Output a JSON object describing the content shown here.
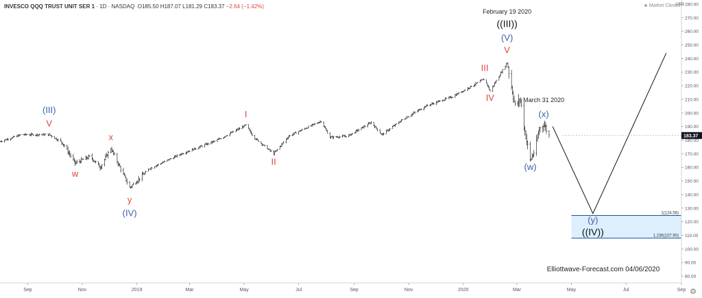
{
  "header": {
    "symbol": "INVESCO QQQ TRUST UNIT SER 1",
    "interval": "1D",
    "exchange": "NASDAQ",
    "open": "O185.50",
    "high": "H187.07",
    "low": "L181.29",
    "close": "C183.37",
    "change": "−2.64 (−1.42%)",
    "market_status": "Market Closed",
    "currency": "USD"
  },
  "colors": {
    "axis_text": "#555555",
    "price_tag": "#131722",
    "wave_red": "#e0443a",
    "wave_blue": "#3a5ca8",
    "box_fill": "#ddeefc",
    "box_stroke": "#1e4f9e",
    "bars": "#222222",
    "projection": "#111111"
  },
  "chart_data": {
    "type": "ohlc",
    "x_tick_labels": [
      "Sep",
      "Nov",
      "2019",
      "Mar",
      "May",
      "Jul",
      "Sep",
      "Nov",
      "2020",
      "Mar",
      "May",
      "Jul",
      "Sep"
    ],
    "x_tick_dates": [
      "2018-09-01",
      "2018-11-01",
      "2019-01-01",
      "2019-03-01",
      "2019-05-01",
      "2019-07-01",
      "2019-09-01",
      "2019-11-01",
      "2020-01-01",
      "2020-03-01",
      "2020-05-01",
      "2020-07-01",
      "2020-09-01"
    ],
    "x_range": [
      "2018-08-01",
      "2020-09-01"
    ],
    "y_ticks": [
      80,
      90,
      100,
      110,
      120,
      130,
      140,
      150,
      160,
      170,
      180,
      190,
      200,
      210,
      220,
      230,
      240,
      250,
      260,
      270,
      280
    ],
    "y_tick_labels": [
      "80.00",
      "90.00",
      "100.00",
      "110.00",
      "120.00",
      "130.00",
      "140.00",
      "150.00",
      "160.00",
      "170.00",
      "180.00",
      "190.00",
      "200.00",
      "210.00",
      "220.00",
      "230.00",
      "240.00",
      "250.00",
      "260.00",
      "270.00",
      "280.00"
    ],
    "y_range": [
      75,
      283
    ],
    "last_price": 183.37,
    "last_price_label": "183.37",
    "price_path": [
      [
        "2018-08-01",
        179
      ],
      [
        "2018-08-25",
        184
      ],
      [
        "2018-09-25",
        184
      ],
      [
        "2018-10-10",
        178
      ],
      [
        "2018-10-24",
        163
      ],
      [
        "2018-11-10",
        168
      ],
      [
        "2018-11-21",
        160
      ],
      [
        "2018-12-03",
        174
      ],
      [
        "2018-12-24",
        145
      ],
      [
        "2019-01-15",
        159
      ],
      [
        "2019-02-20",
        170
      ],
      [
        "2019-04-01",
        180
      ],
      [
        "2019-05-03",
        191
      ],
      [
        "2019-05-12",
        182
      ],
      [
        "2019-06-03",
        170
      ],
      [
        "2019-06-20",
        183
      ],
      [
        "2019-07-26",
        194
      ],
      [
        "2019-08-05",
        182
      ],
      [
        "2019-08-25",
        183
      ],
      [
        "2019-09-20",
        193
      ],
      [
        "2019-10-02",
        184
      ],
      [
        "2019-10-25",
        195
      ],
      [
        "2019-11-20",
        205
      ],
      [
        "2019-12-20",
        212
      ],
      [
        "2020-01-25",
        225
      ],
      [
        "2020-01-31",
        216
      ],
      [
        "2020-02-19",
        237
      ],
      [
        "2020-02-28",
        205
      ],
      [
        "2020-03-05",
        210
      ],
      [
        "2020-03-09",
        190
      ],
      [
        "2020-03-16",
        165
      ],
      [
        "2020-03-22",
        174
      ],
      [
        "2020-03-26",
        188
      ],
      [
        "2020-03-31",
        192
      ],
      [
        "2020-04-06",
        183.37
      ]
    ],
    "projection_path": [
      [
        "2020-04-10",
        190
      ],
      [
        "2020-05-25",
        126
      ],
      [
        "2020-08-15",
        244
      ]
    ],
    "fib_box": {
      "start_date": "2020-05-01",
      "levels": [
        {
          "ratio_label": "1(124.58)",
          "price": 124.58
        },
        {
          "ratio_label": "1.236(107.90)",
          "price": 107.9
        }
      ]
    },
    "wave_labels": [
      {
        "text": "(III)",
        "date": "2018-09-25",
        "price": 200,
        "color": "blue"
      },
      {
        "text": "V",
        "date": "2018-09-25",
        "price": 190,
        "color": "red"
      },
      {
        "text": "w",
        "date": "2018-10-24",
        "price": 153,
        "color": "red"
      },
      {
        "text": "x",
        "date": "2018-12-03",
        "price": 180,
        "color": "red"
      },
      {
        "text": "y",
        "date": "2018-12-24",
        "price": 134,
        "color": "red"
      },
      {
        "text": "(IV)",
        "date": "2018-12-24",
        "price": 124,
        "color": "blue"
      },
      {
        "text": "I",
        "date": "2019-05-03",
        "price": 197,
        "color": "red"
      },
      {
        "text": "II",
        "date": "2019-06-03",
        "price": 162,
        "color": "red"
      },
      {
        "text": "III",
        "date": "2020-01-25",
        "price": 231,
        "color": "red"
      },
      {
        "text": "IV",
        "date": "2020-01-31",
        "price": 209,
        "color": "red"
      },
      {
        "text": "V",
        "date": "2020-02-19",
        "price": 244,
        "color": "red"
      },
      {
        "text": "(V)",
        "date": "2020-02-19",
        "price": 253,
        "color": "blue"
      },
      {
        "text": "((III))",
        "date": "2020-02-19",
        "price": 263,
        "color": "black"
      },
      {
        "text": "(x)",
        "date": "2020-03-31",
        "price": 197,
        "color": "blue"
      },
      {
        "text": "(w)",
        "date": "2020-03-16",
        "price": 158,
        "color": "blue"
      },
      {
        "text": "(y)",
        "date": "2020-05-25",
        "price": 119,
        "color": "blue"
      },
      {
        "text": "((IV))",
        "date": "2020-05-25",
        "price": 110,
        "color": "black"
      }
    ],
    "annotations": [
      {
        "text": "February 19 2020",
        "date": "2020-02-19",
        "price": 273
      },
      {
        "text": "March 31 2020",
        "date": "2020-03-31",
        "price": 208
      }
    ],
    "watermark": "Elliottwave-Forecast.com 04/06/2020"
  }
}
